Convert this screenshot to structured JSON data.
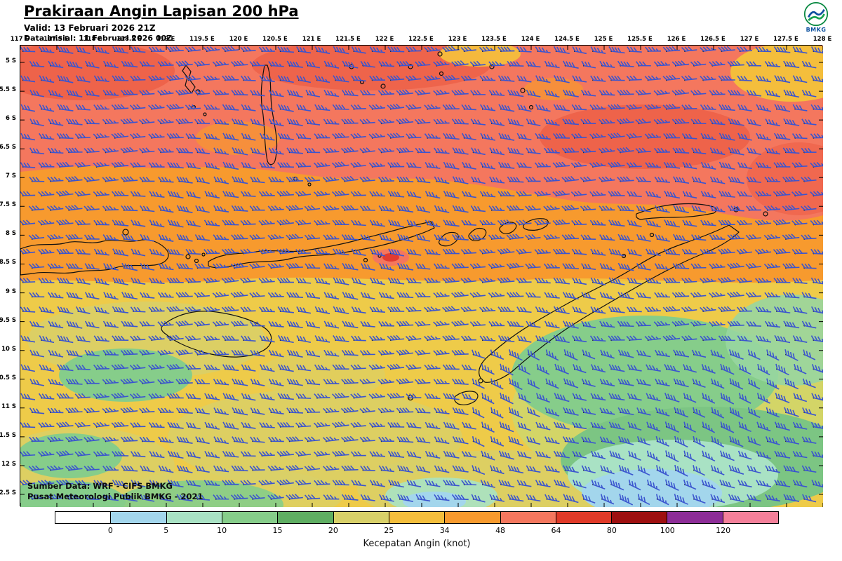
{
  "header": {
    "title": "Prakiraan Angin Lapisan 200 hPa",
    "valid_label": "Valid: 13 Februari 2026 21Z",
    "init_label": "Data inisial: 11 Februari 2026 00Z",
    "logo_text": "BMKG"
  },
  "map": {
    "lon_ticks": [
      "117 E",
      "117.5 E",
      "118 E",
      "118.5 E",
      "119 E",
      "119.5 E",
      "120 E",
      "120.5 E",
      "121 E",
      "121.5 E",
      "122 E",
      "122.5 E",
      "123 E",
      "123.5 E",
      "124 E",
      "124.5 E",
      "125 E",
      "125.5 E",
      "126 E",
      "126.5 E",
      "127 E",
      "127.5 E",
      "128 E"
    ],
    "lat_ticks": [
      "5 S",
      "5.5 S",
      "6 S",
      "6.5 S",
      "7 S",
      "7.5 S",
      "8 S",
      "8.5 S",
      "9 S",
      "9.5 S",
      "10 S",
      "10.5 S",
      "11 S",
      "11.5 S",
      "12 S",
      "12.5 S"
    ],
    "source_line1": "Sumber Data: WRF - CIFS BMKG",
    "source_line2": "Pusat Meteorologi Publik BMKG - 2021",
    "barb_color": "#3b55cf"
  },
  "legend": {
    "title": "Kecepatan Angin (knot)",
    "tick_labels": [
      "0",
      "5",
      "10",
      "15",
      "20",
      "25",
      "34",
      "48",
      "64",
      "80",
      "100",
      "120"
    ],
    "segment_colors": [
      "#ffffff",
      "#a3d6ec",
      "#a9e2c4",
      "#86cd8a",
      "#5fae62",
      "#d8d069",
      "#f4be3c",
      "#f79a2e",
      "#f4775e",
      "#e03a28",
      "#9e1010",
      "#8d2d97",
      "#f4809a"
    ]
  }
}
